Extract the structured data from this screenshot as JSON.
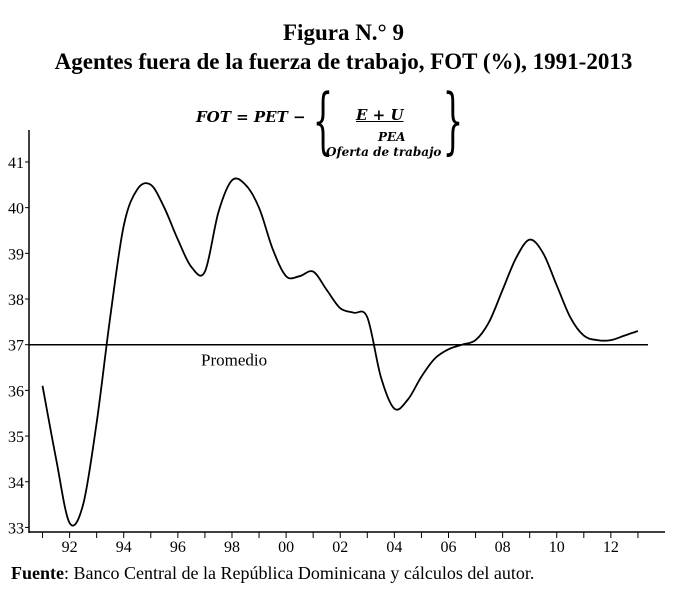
{
  "figure_label": "Figura N.° 9",
  "figure_title": "Agentes fuera de la fuerza de trabajo, FOT (%), 1991-2013",
  "formula": {
    "lhs": "FOT = PET −",
    "numerator": "E + U",
    "denominator": "PEA",
    "underbrace_label": "Oferta de trabajo"
  },
  "source": {
    "label": "Fuente",
    "text": ": Banco Central de la República Dominicana y cálculos del autor."
  },
  "chart_data": {
    "type": "line",
    "title": "Agentes fuera de la fuerza de trabajo, FOT (%), 1991-2013",
    "xlabel": "",
    "ylabel": "",
    "xlim": [
      1990.5,
      2014
    ],
    "ylim": [
      32.9,
      41.7
    ],
    "x_ticks": [
      1992,
      1994,
      1996,
      1998,
      2000,
      2002,
      2004,
      2006,
      2008,
      2010,
      2012
    ],
    "x_tick_labels": [
      "92",
      "94",
      "96",
      "98",
      "00",
      "02",
      "04",
      "06",
      "08",
      "10",
      "12"
    ],
    "y_ticks": [
      33,
      34,
      35,
      36,
      37,
      38,
      39,
      40,
      41
    ],
    "y_tick_labels": [
      "33",
      "34",
      "35",
      "36",
      "37",
      "38",
      "39",
      "40",
      "41"
    ],
    "grid": false,
    "legend": "none",
    "series": [
      {
        "x": [
          1991,
          1991.5,
          1992,
          1992.5,
          1993,
          1993.5,
          1994,
          1994.5,
          1995,
          1995.5,
          1996,
          1996.5,
          1997,
          1997.5,
          1998,
          1998.5,
          1999,
          1999.5,
          2000,
          2000.5,
          2001,
          2001.5,
          2002,
          2002.5,
          2003,
          2003.5,
          2004,
          2004.5,
          2005,
          2005.5,
          2006,
          2006.5,
          2007,
          2007.5,
          2008,
          2008.5,
          2009,
          2009.5,
          2010,
          2010.5,
          2011,
          2011.5,
          2012,
          2012.5,
          2013
        ],
        "values": [
          36.1,
          34.5,
          33.1,
          33.5,
          35.3,
          37.6,
          39.6,
          40.4,
          40.5,
          40.0,
          39.3,
          38.7,
          38.6,
          39.9,
          40.6,
          40.5,
          40.0,
          39.1,
          38.5,
          38.5,
          38.6,
          38.2,
          37.8,
          37.7,
          37.6,
          36.3,
          35.6,
          35.8,
          36.3,
          36.7,
          36.9,
          37.0,
          37.1,
          37.5,
          38.2,
          38.9,
          39.3,
          39.0,
          38.3,
          37.6,
          37.2,
          37.1,
          37.1,
          37.2,
          37.3
        ]
      }
    ],
    "reference_line": {
      "value": 37.0,
      "label": "Promedio"
    }
  }
}
